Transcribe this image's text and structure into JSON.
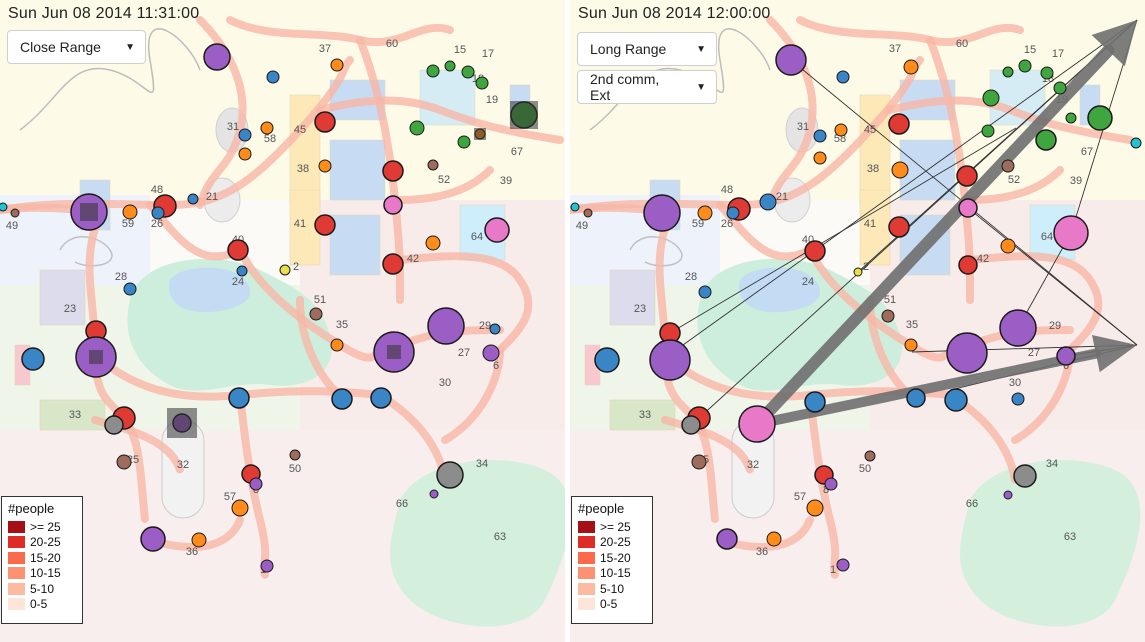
{
  "panels": [
    {
      "timestamp": "Sun Jun 08 2014 11:31:00",
      "dropdowns": [
        {
          "selected": "Close Range"
        }
      ]
    },
    {
      "timestamp": "Sun Jun 08 2014 12:00:00",
      "dropdowns": [
        {
          "selected": "Long Range"
        },
        {
          "selected": "2nd comm, Ext"
        }
      ]
    }
  ],
  "legend": {
    "title": "#people",
    "bins": [
      {
        "label": ">= 25",
        "color": "#a50f15"
      },
      {
        "label": "20-25",
        "color": "#de2d26"
      },
      {
        "label": "15-20",
        "color": "#fb6a4a"
      },
      {
        "label": "10-15",
        "color": "#fc9272"
      },
      {
        "label": "5-10",
        "color": "#fcbba1"
      },
      {
        "label": "0-5",
        "color": "#fee5d9"
      }
    ]
  },
  "map_labels": [
    "37",
    "60",
    "15",
    "17",
    "18",
    "19",
    "31",
    "45",
    "58",
    "67",
    "38",
    "52",
    "39",
    "48",
    "21",
    "49",
    "59",
    "26",
    "41",
    "64",
    "40",
    "47",
    "42",
    "28",
    "24",
    "2",
    "23",
    "51",
    "35",
    "29",
    "27",
    "6",
    "30",
    "33",
    "32",
    "25",
    "50",
    "34",
    "57",
    "8",
    "66",
    "63",
    "36",
    "1"
  ],
  "node_colors": {
    "purple": "#9b5ec4",
    "blue": "#3a85c6",
    "red": "#e03a34",
    "orange": "#ff8c1a",
    "green": "#3fa63f",
    "pink": "#e878c8",
    "brown": "#9e6b5c",
    "grey": "#8c8c8c",
    "yellow": "#e8e04a",
    "teal": "#22c2cf"
  },
  "icons": [
    "chevron-down-icon"
  ]
}
